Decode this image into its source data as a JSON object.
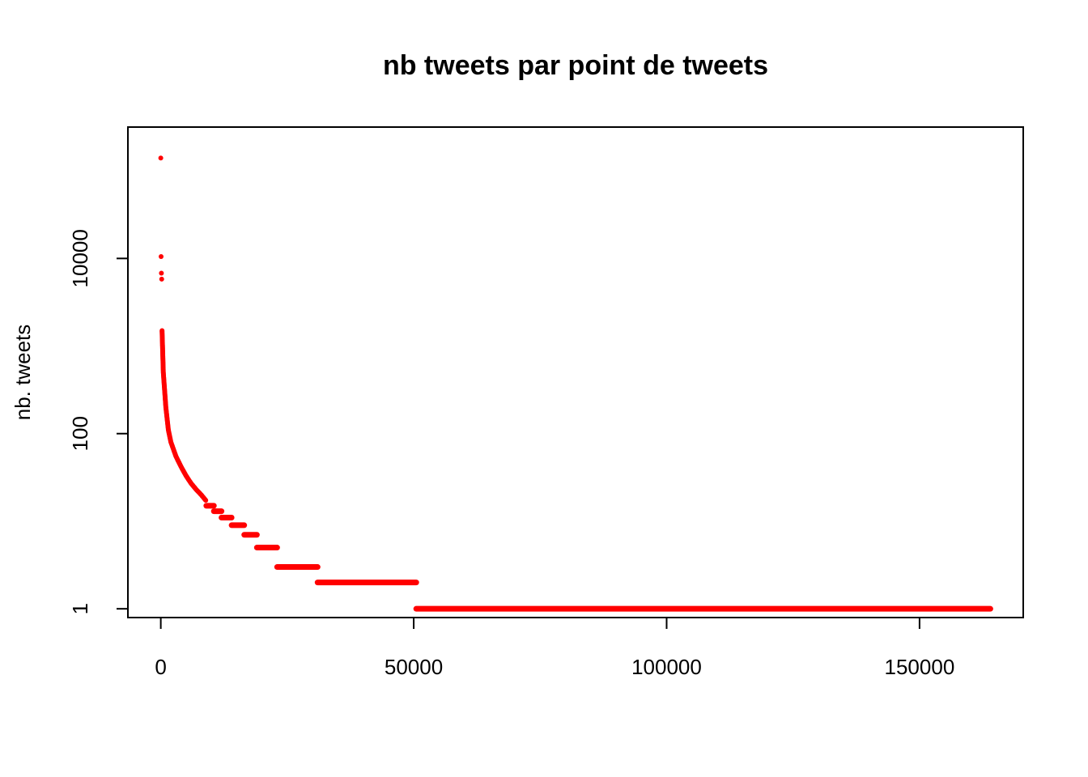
{
  "chart_data": {
    "type": "scatter",
    "title": "nb tweets par point de tweets",
    "xlabel": "",
    "ylabel": "nb. tweets",
    "y_scale": "log10",
    "xlim": [
      -6500,
      170500
    ],
    "ylim_log10": [
      -0.1,
      5.5
    ],
    "x_ticks": [
      {
        "value": 0,
        "label": "0"
      },
      {
        "value": 50000,
        "label": "50000"
      },
      {
        "value": 100000,
        "label": "100000"
      },
      {
        "value": 150000,
        "label": "150000"
      }
    ],
    "y_ticks": [
      {
        "value": 1,
        "label": "1"
      },
      {
        "value": 100,
        "label": "100"
      },
      {
        "value": 10000,
        "label": "10000"
      }
    ],
    "point_color": "#ff0000",
    "outliers": [
      {
        "x": 0,
        "y": 140000
      },
      {
        "x": 60,
        "y": 10500
      },
      {
        "x": 120,
        "y": 6800
      },
      {
        "x": 180,
        "y": 5800
      }
    ],
    "curve": {
      "x": [
        250,
        500,
        1000,
        1500,
        2000,
        3000,
        4000,
        5000,
        6000,
        7000,
        8000,
        9000
      ],
      "y": [
        1500,
        500,
        200,
        110,
        80,
        55,
        42,
        33,
        27,
        23,
        20,
        17
      ]
    },
    "plateaus": [
      {
        "x_start": 9000,
        "x_end": 10500,
        "y": 15
      },
      {
        "x_start": 10500,
        "x_end": 12000,
        "y": 13
      },
      {
        "x_start": 12000,
        "x_end": 14000,
        "y": 11
      },
      {
        "x_start": 14000,
        "x_end": 16500,
        "y": 9
      },
      {
        "x_start": 16500,
        "x_end": 19000,
        "y": 7
      },
      {
        "x_start": 19000,
        "x_end": 23000,
        "y": 5
      },
      {
        "x_start": 23000,
        "x_end": 31000,
        "y": 3
      },
      {
        "x_start": 31000,
        "x_end": 50500,
        "y": 2
      },
      {
        "x_start": 50500,
        "x_end": 164000,
        "y": 1
      }
    ]
  }
}
